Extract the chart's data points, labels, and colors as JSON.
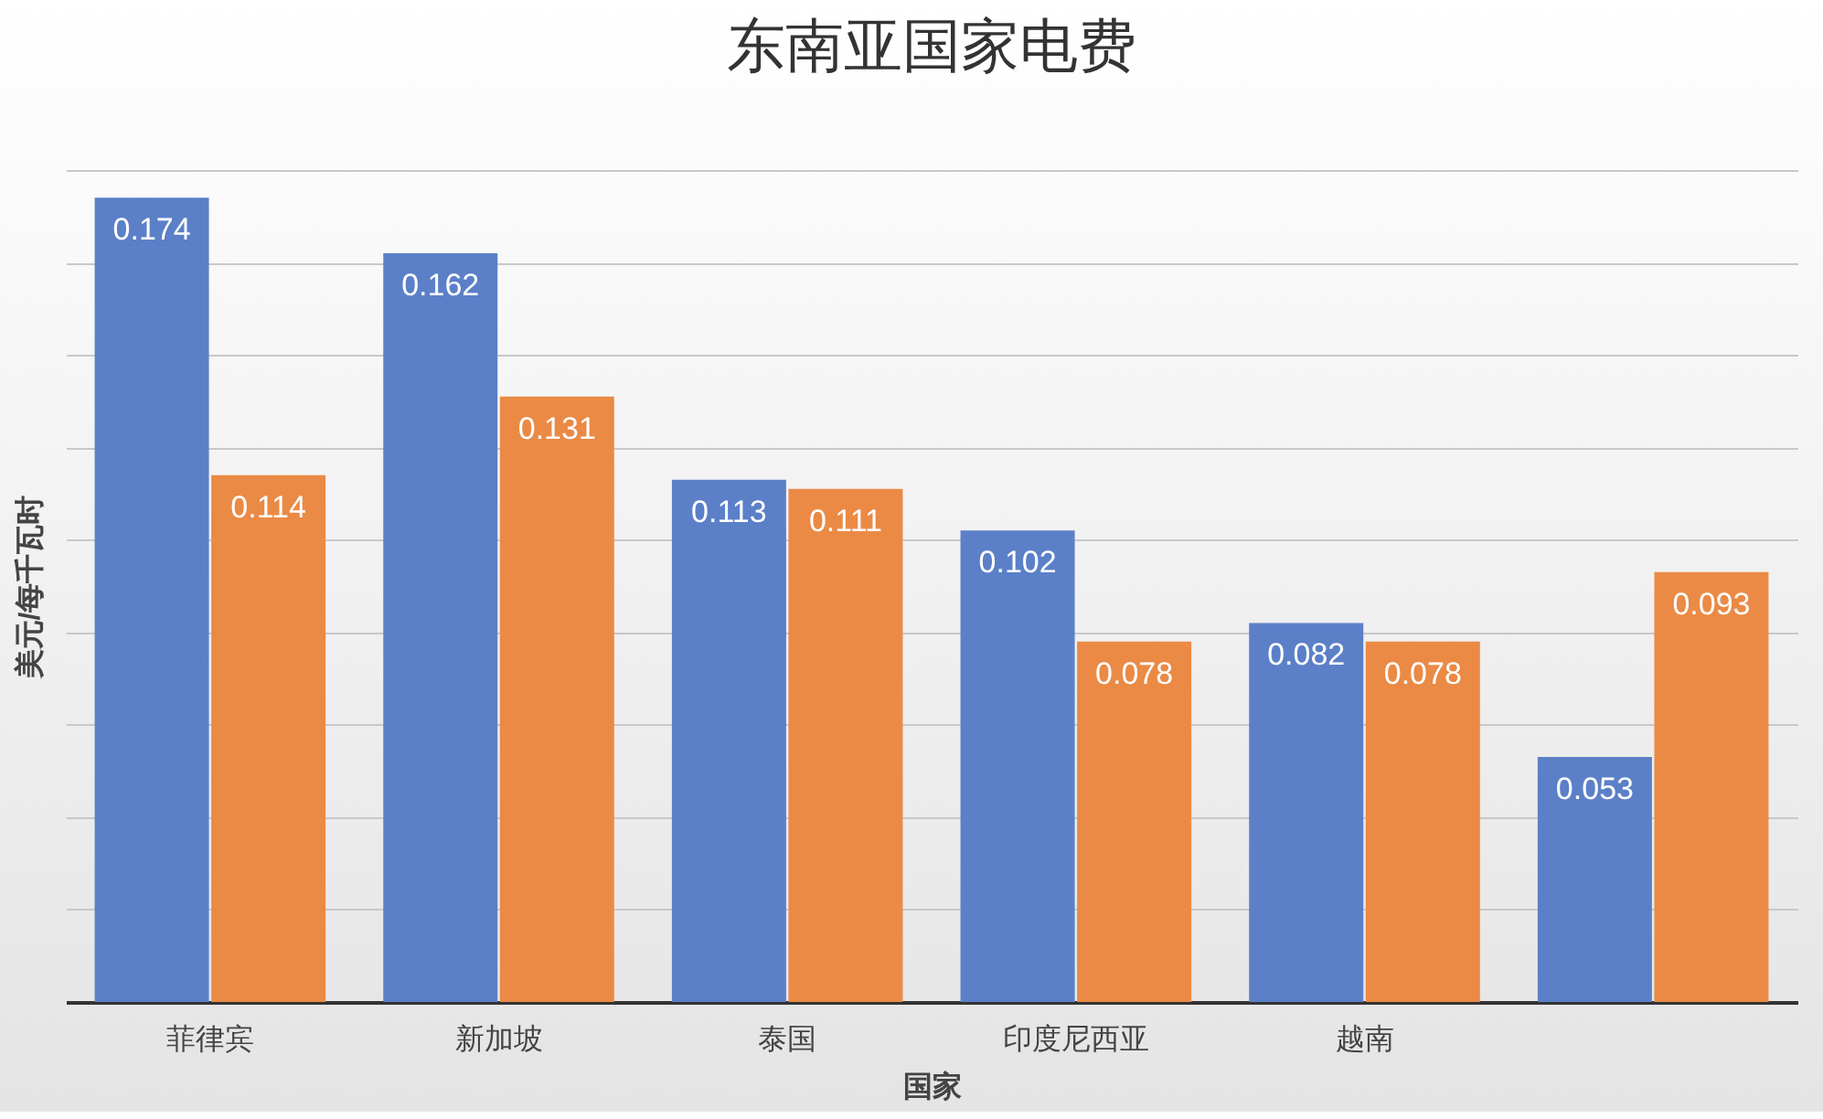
{
  "chart_data": {
    "type": "bar",
    "title": "东南亚国家电费",
    "xlabel": "国家",
    "ylabel": "美元/每千瓦时",
    "categories": [
      "菲律宾",
      "新加坡",
      "泰国",
      "印度尼西亚",
      "越南",
      null
    ],
    "series": [
      {
        "color": "#5b80c8",
        "values": [
          0.174,
          0.162,
          0.113,
          0.102,
          0.082,
          0.053
        ]
      },
      {
        "color": "#ea8a45",
        "values": [
          0.114,
          0.131,
          0.111,
          0.078,
          0.078,
          0.093
        ]
      }
    ],
    "ylim": [
      0,
      0.18
    ],
    "yticks": [
      {
        "value": 0,
        "label": null
      },
      {
        "value": 0.02,
        "label": null
      },
      {
        "value": 0.04,
        "label": null
      },
      {
        "value": 0.06,
        "label": null
      },
      {
        "value": 0.08,
        "label": null
      },
      {
        "value": 0.1,
        "label": null
      },
      {
        "value": 0.12,
        "label": null
      },
      {
        "value": 0.14,
        "label": null
      },
      {
        "value": 0.16,
        "label": null
      },
      {
        "value": 0.18,
        "label": null
      }
    ],
    "grid": "y",
    "legend": false,
    "tick_labels": "x",
    "data_labels": true
  }
}
